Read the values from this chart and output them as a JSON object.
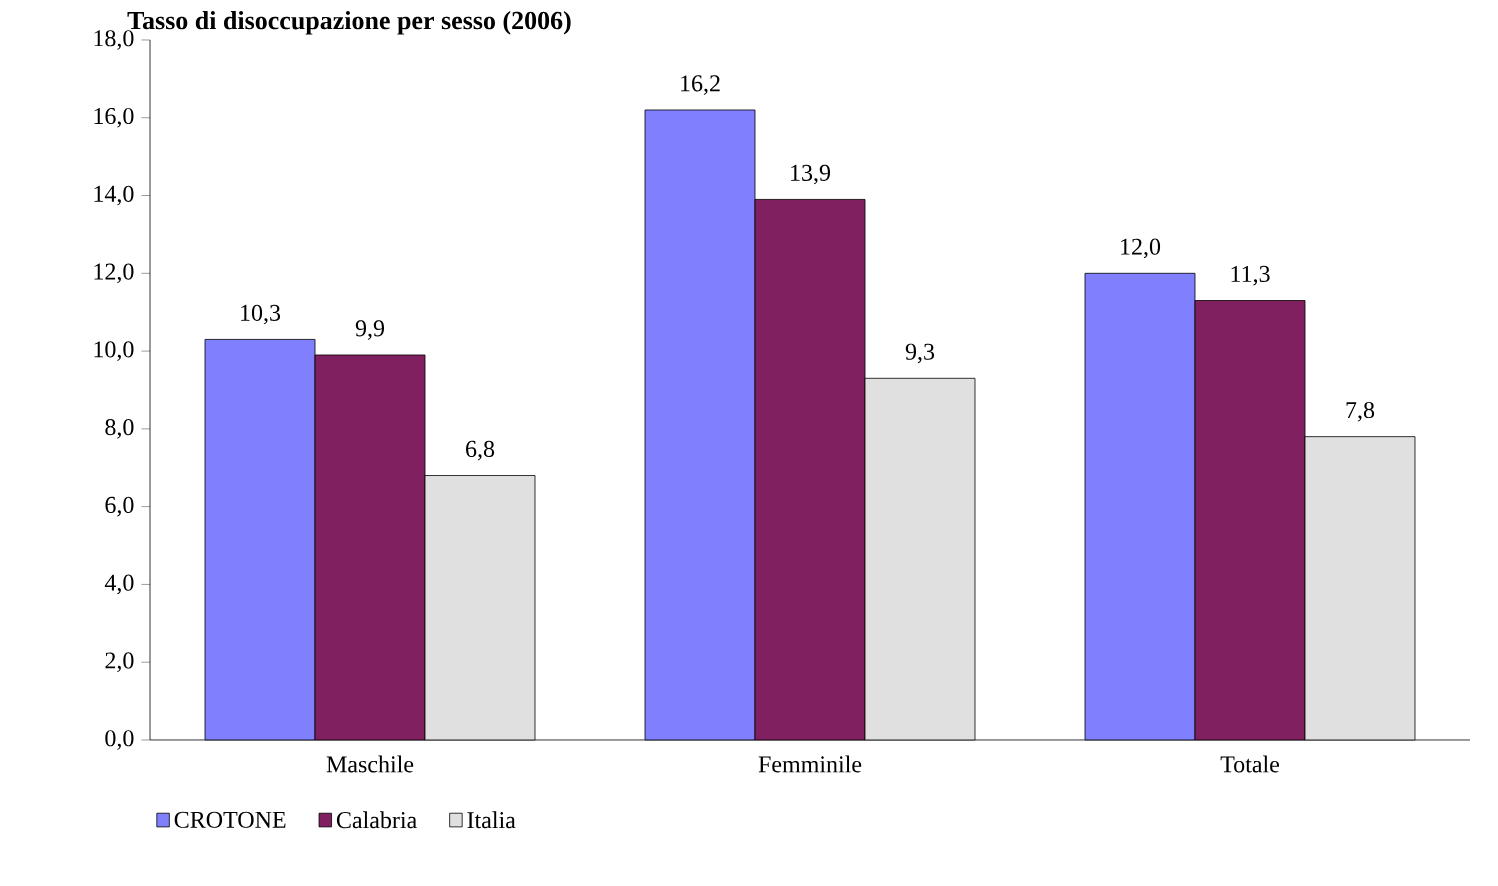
{
  "chart_data": {
    "type": "bar",
    "title": "Tasso di disoccupazione per sesso (2006)",
    "categories": [
      "Maschile",
      "Femminile",
      "Totale"
    ],
    "series": [
      {
        "name": "CROTONE",
        "color": "#8080ff",
        "values": [
          10.3,
          16.2,
          12.0
        ],
        "value_labels": [
          "10,3",
          "16,2",
          "12,0"
        ]
      },
      {
        "name": "Calabria",
        "color": "#802060",
        "values": [
          9.9,
          13.9,
          11.3
        ],
        "value_labels": [
          "9,9",
          "13,9",
          "11,3"
        ]
      },
      {
        "name": "Italia",
        "color": "#e0e0e0",
        "values": [
          6.8,
          9.3,
          7.8
        ],
        "value_labels": [
          "6,8",
          "9,3",
          "7,8"
        ]
      }
    ],
    "ylim": [
      0,
      18
    ],
    "yticks": [
      {
        "value": 0,
        "label": "0,0"
      },
      {
        "value": 2,
        "label": "2,0"
      },
      {
        "value": 4,
        "label": "4,0"
      },
      {
        "value": 6,
        "label": "6,0"
      },
      {
        "value": 8,
        "label": "8,0"
      },
      {
        "value": 10,
        "label": "10,0"
      },
      {
        "value": 12,
        "label": "12,0"
      },
      {
        "value": 14,
        "label": "14,0"
      },
      {
        "value": 16,
        "label": "16,0"
      },
      {
        "value": 18,
        "label": "18,0"
      }
    ],
    "grid": false,
    "legend": "bottom left"
  }
}
